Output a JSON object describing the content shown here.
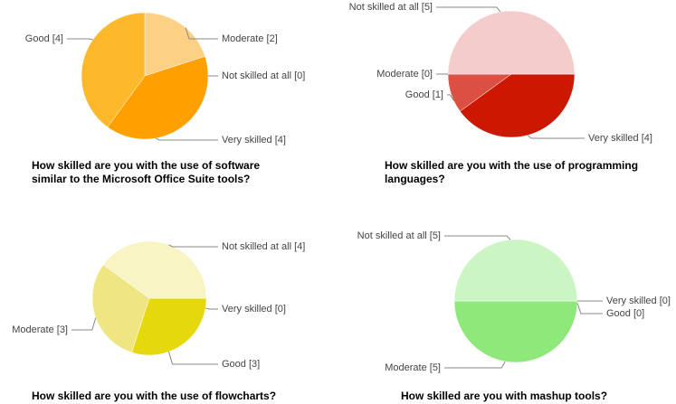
{
  "chart_data": [
    {
      "type": "pie",
      "title": "How skilled are you with the use of software similar to the Microsoft Office Suite tools?",
      "values": [
        2,
        0,
        4,
        4
      ],
      "value_labels": [
        "Moderate [2]",
        "Not skilled at all [0]",
        "Very skilled [4]",
        "Good [4]"
      ],
      "colors": [
        "#fdd185",
        "#fff1c4",
        "#ffa000",
        "#fdb92b"
      ]
    },
    {
      "type": "pie",
      "title": "How skilled are you with the use of programming languages?",
      "values": [
        4,
        1,
        0,
        5
      ],
      "value_labels": [
        "Very skilled [4]",
        "Good [1]",
        "Moderate [0]",
        "Not skilled at all [5]"
      ],
      "colors": [
        "#cc1800",
        "#dc5044",
        "#e88c85",
        "#f4cccc"
      ]
    },
    {
      "type": "pie",
      "title": "How skilled are you with the use of flowcharts?",
      "values": [
        0,
        3,
        3,
        4
      ],
      "value_labels": [
        "Very skilled [0]",
        "Good [3]",
        "Moderate [3]",
        "Not skilled at all [4]"
      ],
      "colors": [
        "#c9bc00",
        "#e5d80c",
        "#efe582",
        "#f8f4c4"
      ]
    },
    {
      "type": "pie",
      "title": "How skilled are you with mashup tools?",
      "values": [
        0,
        0,
        5,
        5
      ],
      "value_labels": [
        "Very skilled [0]",
        "Good [0]",
        "Moderate [5]",
        "Not skilled at all [5]"
      ],
      "colors": [
        "#3cb024",
        "#6ccf58",
        "#8ee87a",
        "#ccf5c4"
      ]
    }
  ]
}
